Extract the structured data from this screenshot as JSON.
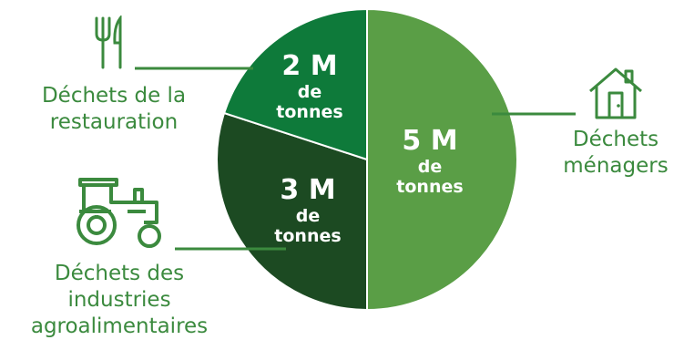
{
  "chart_data": {
    "type": "pie",
    "slices": [
      {
        "value": 5,
        "value_label": "5 M",
        "unit_line1": "de",
        "unit_line2": "tonnes",
        "category": [
          "Déchets",
          "ménagers"
        ],
        "color": "#5a9e46",
        "icon": "house-icon"
      },
      {
        "value": 3,
        "value_label": "3 M",
        "unit_line1": "de",
        "unit_line2": "tonnes",
        "category": [
          "Déchets des",
          "industries",
          "agroalimentaires"
        ],
        "color": "#1c4a22",
        "icon": "tractor-icon"
      },
      {
        "value": 2,
        "value_label": "2 M",
        "unit_line1": "de",
        "unit_line2": "tonnes",
        "category": [
          "Déchets de la",
          "restauration"
        ],
        "color": "#0e7a3a",
        "icon": "fork-knife-icon"
      }
    ],
    "colors": {
      "label_text": "#3b8a3e",
      "leader_line": "#3b8a3e",
      "slice_text": "#ffffff"
    }
  }
}
